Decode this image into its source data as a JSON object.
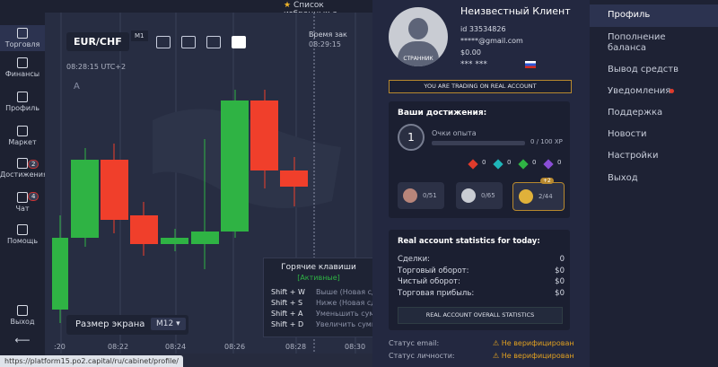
{
  "topbar": {
    "favorites": "Список избранных а"
  },
  "sidebar": {
    "items": [
      "Торговля",
      "Финансы",
      "Профиль",
      "Маркет",
      "Достижения",
      "Чат",
      "Помощь"
    ],
    "badges": {
      "achievements": "2",
      "chat": "4"
    },
    "exit": "Выход"
  },
  "chart": {
    "asset": "EUR/CHF",
    "timeframe": "M1",
    "time": "08:28:15 UTC+2",
    "marker": "A",
    "expiry_label": "Время зак",
    "expiry_time": "08:29:15",
    "time_axis": [
      ":20",
      "08:22",
      "08:24",
      "08:26",
      "08:28",
      "08:30"
    ],
    "screen_size_label": "Размер экрана",
    "screen_size": "M12"
  },
  "hotkeys": {
    "title": "Горячие клавиши",
    "status": "[Активные]",
    "rows": [
      {
        "keys": "Shift + W",
        "action": "Выше (Новая сд"
      },
      {
        "keys": "Shift + S",
        "action": "Ниже (Новая сд"
      },
      {
        "keys": "Shift + A",
        "action": "Уменьшить сумм"
      },
      {
        "keys": "Shift + D",
        "action": "Увеличить сумм"
      }
    ]
  },
  "profile": {
    "avatar_label": "СТРАННИК",
    "name": "Неизвестный Клиент",
    "id": "id 33534826",
    "email": "*****@gmail.com",
    "balance": "$0.00",
    "phone": "*** ***",
    "banner": "YOU ARE TRADING ON REAL ACCOUNT"
  },
  "achievements": {
    "title": "Ваши достижения:",
    "level": "1",
    "xp_label": "Очки опыта",
    "xp": "0 / 100 XP",
    "gems": [
      "0",
      "0",
      "0",
      "0"
    ],
    "chests": [
      "0/51",
      "0/65",
      "2/44"
    ],
    "chest_bonus": "+2"
  },
  "stats": {
    "title": "Real account statistics for today:",
    "rows": [
      {
        "label": "Сделки:",
        "value": "0"
      },
      {
        "label": "Торговый оборот:",
        "value": "$0"
      },
      {
        "label": "Чистый оборот:",
        "value": "$0"
      },
      {
        "label": "Торговая прибыль:",
        "value": "$0"
      }
    ],
    "button": "REAL ACCOUNT OVERALL STATISTICS"
  },
  "verification": {
    "rows": [
      {
        "label": "Статус email:",
        "value": "Не верифицирован"
      },
      {
        "label": "Статус личности:",
        "value": "Не верифицирован"
      }
    ]
  },
  "menu": {
    "items": [
      "Профиль",
      "Пополнение баланса",
      "Вывод средств",
      "Уведомления",
      "Поддержка",
      "Новости",
      "Настройки",
      "Выход"
    ]
  },
  "status_bar": {
    "url": "https://platform15.po2.capital/ru/cabinet/profile/"
  }
}
